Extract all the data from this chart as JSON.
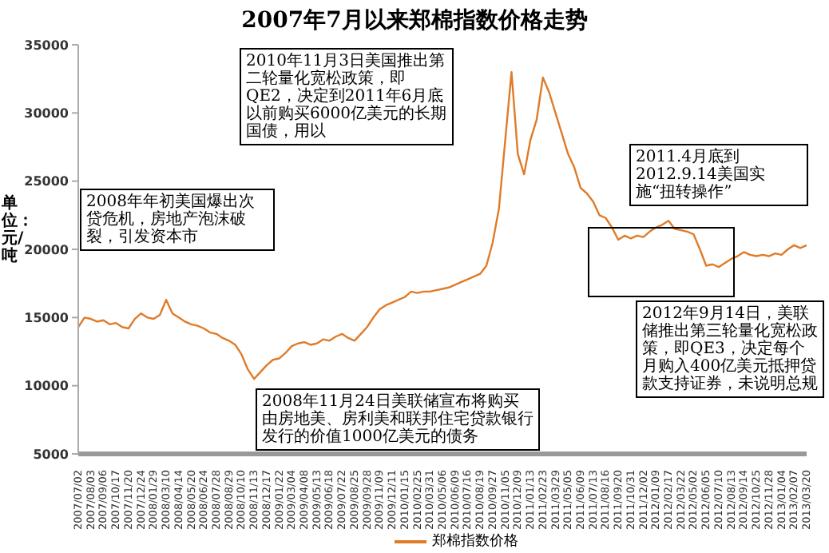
{
  "chart_data": {
    "type": "line",
    "title": "2007年7月以来郑棉指数价格走势",
    "ylabel": "单位：元/吨",
    "categories": [
      "2007/07/02",
      null,
      "2007/08/03",
      null,
      "2007/09/06",
      null,
      "2007/10/17",
      null,
      "2007/11/20",
      null,
      "2007/12/24",
      null,
      "2008/01/29",
      null,
      "2008/03/10",
      null,
      "2008/04/14",
      null,
      "2008/05/20",
      null,
      "2008/06/24",
      null,
      "2008/07/28",
      null,
      "2008/08/29",
      null,
      "2008/10/10",
      null,
      "2008/11/13",
      null,
      "2008/12/17",
      null,
      "2009/01/22",
      null,
      "2009/03/04",
      null,
      "2009/04/08",
      null,
      "2009/05/13",
      null,
      "2009/06/18",
      null,
      "2009/07/22",
      null,
      "2009/08/25",
      null,
      "2009/09/28",
      null,
      "2009/11/09",
      null,
      "2009/12/11",
      null,
      "2010/01/15",
      null,
      "2010/02/25",
      null,
      "2010/03/31",
      null,
      "2010/05/06",
      null,
      "2010/06/09",
      null,
      "2010/07/16",
      null,
      "2010/08/19",
      null,
      "2010/09/27",
      null,
      "2010/11/05",
      null,
      "2010/12/09",
      null,
      "2011/01/13",
      null,
      "2011/02/23",
      null,
      "2011/03/29",
      null,
      "2011/05/05",
      null,
      "2011/06/09",
      null,
      "2011/07/13",
      null,
      "2011/08/16",
      null,
      "2011/09/20",
      null,
      "2011/10/31",
      null,
      "2011/12/02",
      null,
      "2012/01/09",
      null,
      "2012/02/17",
      null,
      "2012/03/22",
      null,
      "2012/05/02",
      null,
      "2012/06/05",
      null,
      "2012/07/10",
      null,
      "2012/08/13",
      null,
      "2012/09/14",
      null,
      "2012/10/25",
      null,
      "2012/11/28",
      null,
      "2013/01/04",
      null,
      "2013/02/07",
      null,
      "2013/03/20"
    ],
    "series": [
      {
        "name": "郑棉指数价格",
        "color": "#e07b28",
        "values": [
          14300,
          15000,
          14900,
          14700,
          14800,
          14500,
          14600,
          14300,
          14200,
          14900,
          15300,
          15000,
          14900,
          15200,
          16300,
          15300,
          15000,
          14700,
          14500,
          14400,
          14200,
          13900,
          13800,
          13500,
          13300,
          13000,
          12300,
          11200,
          10500,
          11000,
          11500,
          11900,
          12000,
          12400,
          12900,
          13100,
          13200,
          13000,
          13100,
          13400,
          13300,
          13600,
          13800,
          13500,
          13300,
          13800,
          14300,
          15000,
          15600,
          15900,
          16100,
          16300,
          16500,
          16900,
          16800,
          16900,
          16900,
          17000,
          17100,
          17200,
          17400,
          17600,
          17800,
          18000,
          18200,
          18800,
          20500,
          23000,
          28000,
          33000,
          27000,
          25500,
          28000,
          29500,
          32600,
          31500,
          30000,
          28500,
          27000,
          26000,
          24500,
          24100,
          23500,
          22500,
          22300,
          21600,
          20700,
          21000,
          20800,
          21000,
          20900,
          21300,
          21600,
          21800,
          22100,
          21500,
          21400,
          21300,
          21100,
          20000,
          18800,
          18900,
          18700,
          19000,
          19300,
          19500,
          19800,
          19600,
          19500,
          19600,
          19500,
          19700,
          19600,
          20000,
          20300,
          20100,
          20300
        ]
      }
    ],
    "ylim": [
      5000,
      35000
    ],
    "yticks": [
      5000,
      10000,
      15000,
      20000,
      25000,
      30000,
      35000
    ],
    "grid": false,
    "legend": "bottom",
    "marker": "none",
    "line_style": "solid",
    "annotations": [
      "2008年年初美国爆出次贷危机，房地产泡沫破裂，引发资本市",
      "2008年11月24日美联储宣布将购买由房地美、房利美和联邦住宅贷款银行发行的价值1000亿美元的债务",
      "2010年11月3日美国推出第二轮量化宽松政策，即QE2，决定到2011年6月底以前购买6000亿美元的长期国债，用以",
      "2011.4月底到2012.9.14美国实施“扭转操作”",
      "2012年9月14日，美联储推出第三轮量化宽松政策，即QE3，决定每个月购入400亿美元抵押贷款支持证券，未说明总规"
    ]
  }
}
